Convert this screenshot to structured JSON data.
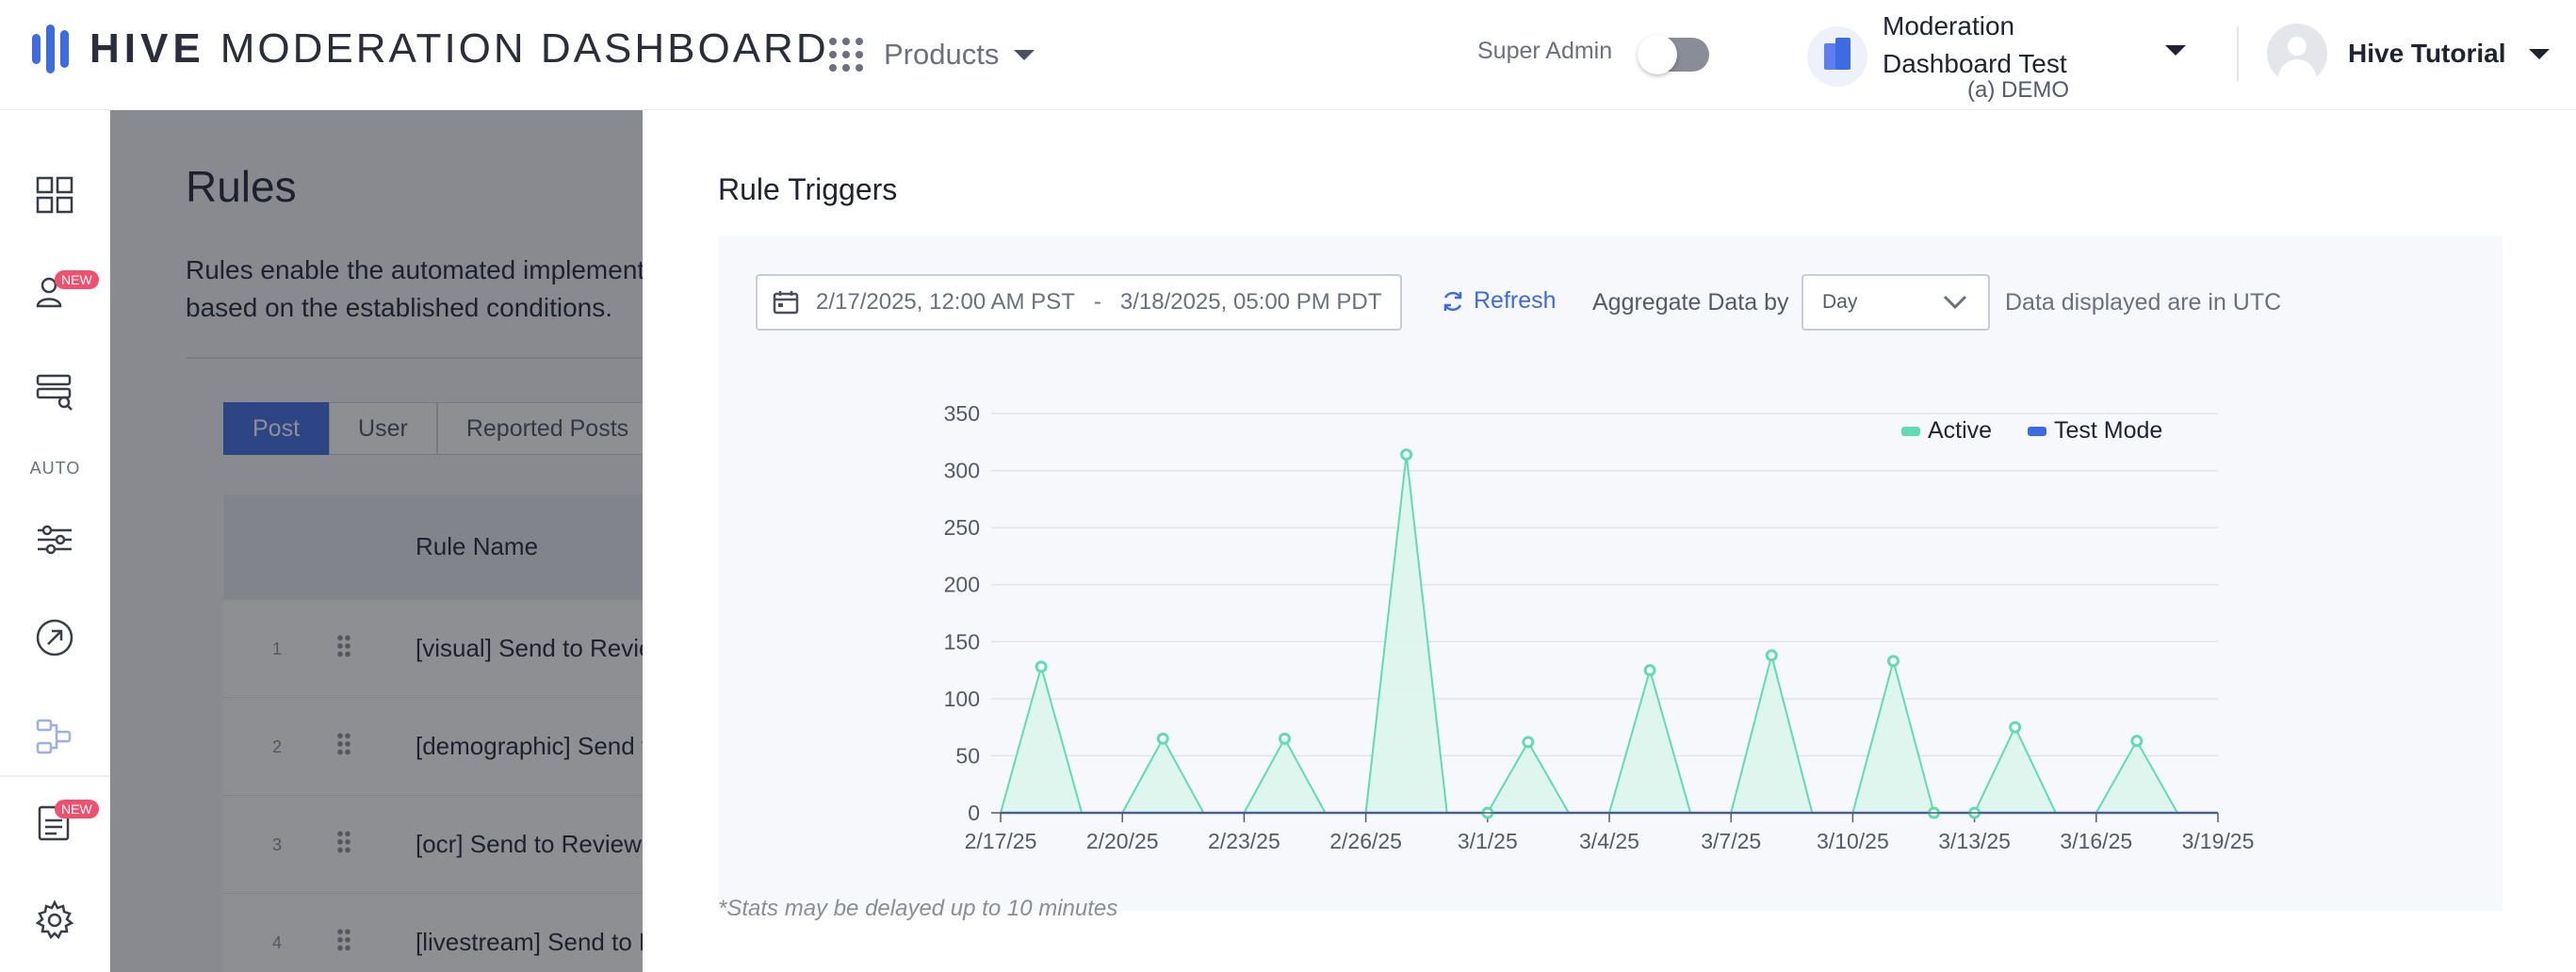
{
  "header": {
    "brand_strong": "HIVE",
    "brand_light": "MODERATION DASHBOARD",
    "products_label": "Products",
    "super_admin_label": "Super Admin",
    "super_admin_enabled": false,
    "org_name": "Moderation Dashboard Test",
    "org_sub": "(a) DEMO",
    "user_name": "Hive Tutorial"
  },
  "sidebar": {
    "auto_label": "AUTO",
    "badges": [
      "NEW",
      "NEW"
    ],
    "items": [
      "dashboard-icon",
      "user-review-icon",
      "review-queue-icon",
      "sliders-icon",
      "arrow-circle-icon",
      "workflow-icon",
      "reports-icon",
      "gear-icon"
    ]
  },
  "background_page": {
    "title": "Rules",
    "description": "Rules enable the automated implementation of actions when content undergoes processing based on the established conditions.",
    "tabs": [
      "Post",
      "User",
      "Reported Posts"
    ],
    "active_tab": "Post",
    "column_rule_name": "Rule Name",
    "rows": [
      {
        "num": "1",
        "name": "[visual] Send to Review"
      },
      {
        "num": "2",
        "name": "[demographic] Send to Review"
      },
      {
        "num": "3",
        "name": "[ocr] Send to Review"
      },
      {
        "num": "4",
        "name": "[livestream] Send to Review"
      }
    ]
  },
  "drawer": {
    "title": "Rule Triggers",
    "date_start": "2/17/2025, 12:00 AM PST",
    "date_separator": "-",
    "date_end": "3/18/2025, 05:00 PM PDT",
    "refresh_label": "Refresh",
    "aggregate_label": "Aggregate Data by",
    "aggregate_value": "Day",
    "utc_note": "Data displayed are in UTC",
    "footnote": "*Stats may be delayed up to 10 minutes"
  },
  "colors": {
    "accent": "#3d6be3",
    "active_series": "#5fdcb0",
    "active_fill": "#dcf5ed",
    "test_series": "#3d6be3"
  },
  "chart_data": {
    "type": "area",
    "x_days_from_feb17": [
      0,
      1,
      2,
      3,
      4,
      5,
      6,
      7,
      8,
      9,
      10,
      11,
      12,
      13,
      14,
      15,
      16,
      17,
      18,
      19,
      20,
      21,
      22,
      23,
      24,
      25,
      26,
      27,
      28,
      29,
      30
    ],
    "x": [
      "2/17/25",
      "2/18/25",
      "2/19/25",
      "2/20/25",
      "2/21/25",
      "2/22/25",
      "2/23/25",
      "2/24/25",
      "2/25/25",
      "2/26/25",
      "2/27/25",
      "2/28/25",
      "3/1/25",
      "3/2/25",
      "3/3/25",
      "3/4/25",
      "3/5/25",
      "3/6/25",
      "3/7/25",
      "3/8/25",
      "3/9/25",
      "3/10/25",
      "3/11/25",
      "3/12/25",
      "3/13/25",
      "3/14/25",
      "3/15/25",
      "3/16/25",
      "3/17/25",
      "3/18/25",
      "3/19/25"
    ],
    "series": [
      {
        "name": "Active",
        "points": [
          [
            0,
            0
          ],
          [
            1,
            128
          ],
          [
            2,
            0
          ],
          [
            3,
            0
          ],
          [
            4,
            65
          ],
          [
            5,
            0
          ],
          [
            6,
            0
          ],
          [
            7,
            65
          ],
          [
            8,
            0
          ],
          [
            9,
            0
          ],
          [
            10,
            314
          ],
          [
            11,
            0
          ],
          [
            12,
            0
          ],
          [
            13,
            62
          ],
          [
            14,
            0
          ],
          [
            15,
            0
          ],
          [
            16,
            125
          ],
          [
            17,
            0
          ],
          [
            18,
            0
          ],
          [
            19,
            138
          ],
          [
            20,
            0
          ],
          [
            21,
            0
          ],
          [
            22,
            133
          ],
          [
            23,
            0
          ],
          [
            24,
            0
          ],
          [
            25,
            75
          ],
          [
            26,
            0
          ],
          [
            27,
            0
          ],
          [
            28,
            63
          ],
          [
            29,
            0
          ],
          [
            30,
            0
          ]
        ],
        "markers": [
          [
            1,
            128
          ],
          [
            4,
            65
          ],
          [
            7,
            65
          ],
          [
            10,
            314
          ],
          [
            12,
            0
          ],
          [
            13,
            62
          ],
          [
            16,
            125
          ],
          [
            19,
            138
          ],
          [
            22,
            133
          ],
          [
            23,
            0
          ],
          [
            24,
            0
          ],
          [
            25,
            75
          ],
          [
            28,
            63
          ]
        ]
      },
      {
        "name": "Test Mode",
        "points": [
          [
            0,
            0
          ],
          [
            30,
            0
          ]
        ],
        "markers": []
      }
    ],
    "xtick_labels": [
      "2/17/25",
      "2/20/25",
      "2/23/25",
      "2/26/25",
      "3/1/25",
      "3/4/25",
      "3/7/25",
      "3/10/25",
      "3/13/25",
      "3/16/25",
      "3/19/25"
    ],
    "xtick_days": [
      0,
      3,
      6,
      9,
      12,
      15,
      18,
      21,
      24,
      27,
      30
    ],
    "ytick_labels": [
      "0",
      "50",
      "100",
      "150",
      "200",
      "250",
      "300",
      "350"
    ],
    "ylim": [
      0,
      350
    ],
    "grid": true,
    "legend_position": "top-right"
  }
}
